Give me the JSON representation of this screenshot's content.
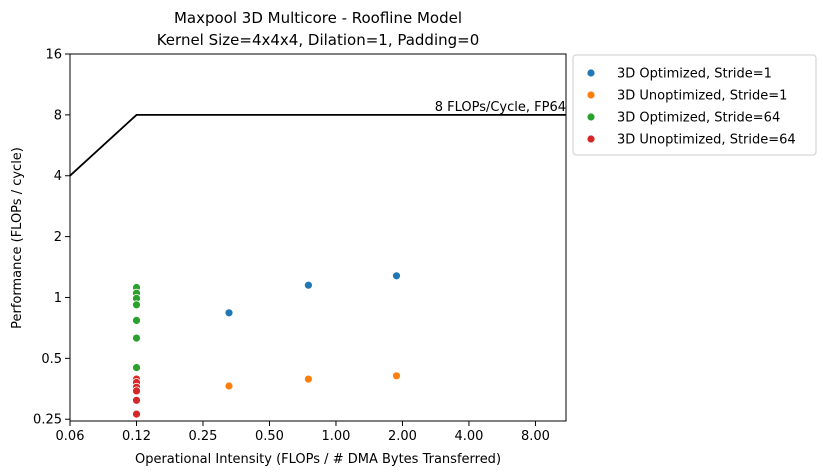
{
  "chart_data": {
    "type": "scatter",
    "title": "Maxpool 3D Multicore - Roofline Model",
    "subtitle": "Kernel Size=4x4x4, Dilation=1, Padding=0",
    "xlabel": "Operational Intensity (FLOPs / # DMA Bytes Transferred)",
    "ylabel": "Performance (FLOPs / cycle)",
    "xscale": "log2",
    "yscale": "log2",
    "xlim": [
      0.0625,
      11
    ],
    "ylim": [
      0.245,
      16
    ],
    "xticks": [
      0.0625,
      0.125,
      0.25,
      0.5,
      1,
      2,
      4,
      8
    ],
    "xtick_labels": [
      "0.06",
      "0.12",
      "0.25",
      "0.50",
      "1.00",
      "2.00",
      "4.00",
      "8.00"
    ],
    "yticks": [
      0.25,
      0.5,
      1,
      2,
      4,
      8,
      16
    ],
    "ytick_labels": [
      "0.25",
      "0.5",
      "1",
      "2",
      "4",
      "8",
      "16"
    ],
    "roofline": {
      "points": [
        [
          0.0625,
          4
        ],
        [
          0.125,
          8
        ],
        [
          11,
          8
        ]
      ],
      "label": "8 FLOPs/Cycle, FP64",
      "color": "#000000"
    },
    "legend_position": "outside-right-top",
    "grid": false,
    "series": [
      {
        "name": "3D Optimized, Stride=1",
        "color": "#1f77b4",
        "points": [
          [
            0.328,
            0.84
          ],
          [
            0.75,
            1.15
          ],
          [
            1.88,
            1.28
          ]
        ]
      },
      {
        "name": "3D Unoptimized, Stride=1",
        "color": "#ff7f0e",
        "points": [
          [
            0.328,
            0.365
          ],
          [
            0.75,
            0.395
          ],
          [
            1.88,
            0.41
          ]
        ]
      },
      {
        "name": "3D Optimized, Stride=64",
        "color": "#2ca02c",
        "points": [
          [
            0.125,
            1.12
          ],
          [
            0.125,
            1.05
          ],
          [
            0.125,
            0.99
          ],
          [
            0.125,
            0.92
          ],
          [
            0.125,
            0.77
          ],
          [
            0.125,
            0.63
          ],
          [
            0.125,
            0.45
          ]
        ]
      },
      {
        "name": "3D Unoptimized, Stride=64",
        "color": "#d62728",
        "points": [
          [
            0.125,
            0.395
          ],
          [
            0.125,
            0.38
          ],
          [
            0.125,
            0.36
          ],
          [
            0.125,
            0.345
          ],
          [
            0.125,
            0.31
          ],
          [
            0.125,
            0.265
          ]
        ]
      }
    ]
  }
}
